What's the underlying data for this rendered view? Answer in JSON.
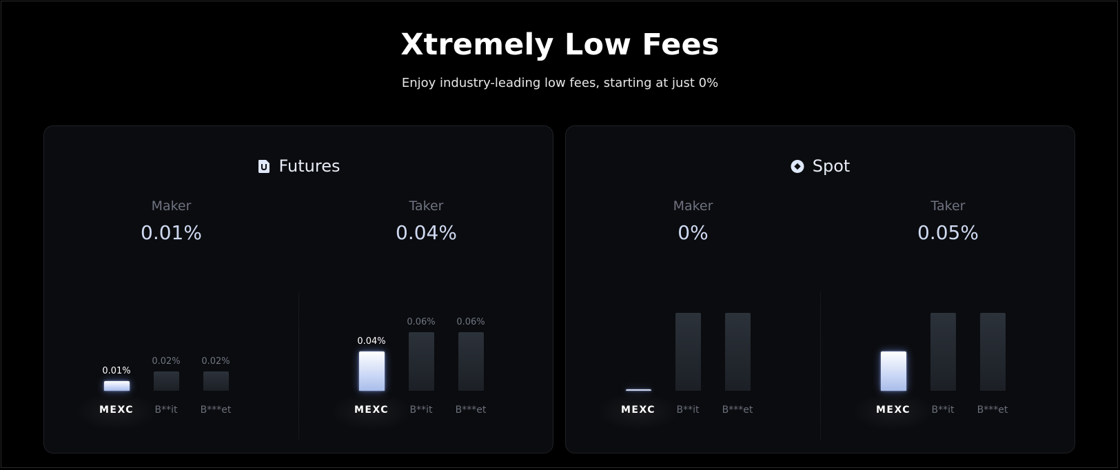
{
  "header": {
    "title": "Xtremely Low Fees",
    "subtitle": "Enjoy industry-leading low fees, starting at just 0%"
  },
  "cards": [
    {
      "key": "futures",
      "title": "Futures",
      "icon": "futures-u-icon",
      "columns": [
        {
          "label": "Maker",
          "value": "0.01%",
          "chart_data": {
            "type": "bar",
            "categories": [
              "MEXC",
              "B**it",
              "B***et"
            ],
            "values": [
              0.01,
              0.02,
              0.02
            ],
            "labels": [
              "0.01%",
              "0.02%",
              "0.02%"
            ],
            "ylim": [
              0,
              0.08
            ]
          }
        },
        {
          "label": "Taker",
          "value": "0.04%",
          "chart_data": {
            "type": "bar",
            "categories": [
              "MEXC",
              "B**it",
              "B***et"
            ],
            "values": [
              0.04,
              0.06,
              0.06
            ],
            "labels": [
              "0.04%",
              "0.06%",
              "0.06%"
            ],
            "ylim": [
              0,
              0.08
            ]
          }
        }
      ]
    },
    {
      "key": "spot",
      "title": "Spot",
      "icon": "spot-diamond-icon",
      "columns": [
        {
          "label": "Maker",
          "value": "0%",
          "chart_data": {
            "type": "bar",
            "categories": [
              "MEXC",
              "B**it",
              "B***et"
            ],
            "values": [
              0,
              0.1,
              0.1
            ],
            "labels": [
              "",
              "",
              ""
            ],
            "ylim": [
              0,
              0.1
            ]
          }
        },
        {
          "label": "Taker",
          "value": "0.05%",
          "chart_data": {
            "type": "bar",
            "categories": [
              "MEXC",
              "B**it",
              "B***et"
            ],
            "values": [
              0.05,
              0.1,
              0.1
            ],
            "labels": [
              "",
              "",
              ""
            ],
            "ylim": [
              0,
              0.1
            ]
          }
        }
      ]
    }
  ],
  "colors": {
    "background": "#000000",
    "card": "#0b0c0f",
    "brand_bar": "#cbd8f6",
    "competitor_bar": "#262b32"
  }
}
